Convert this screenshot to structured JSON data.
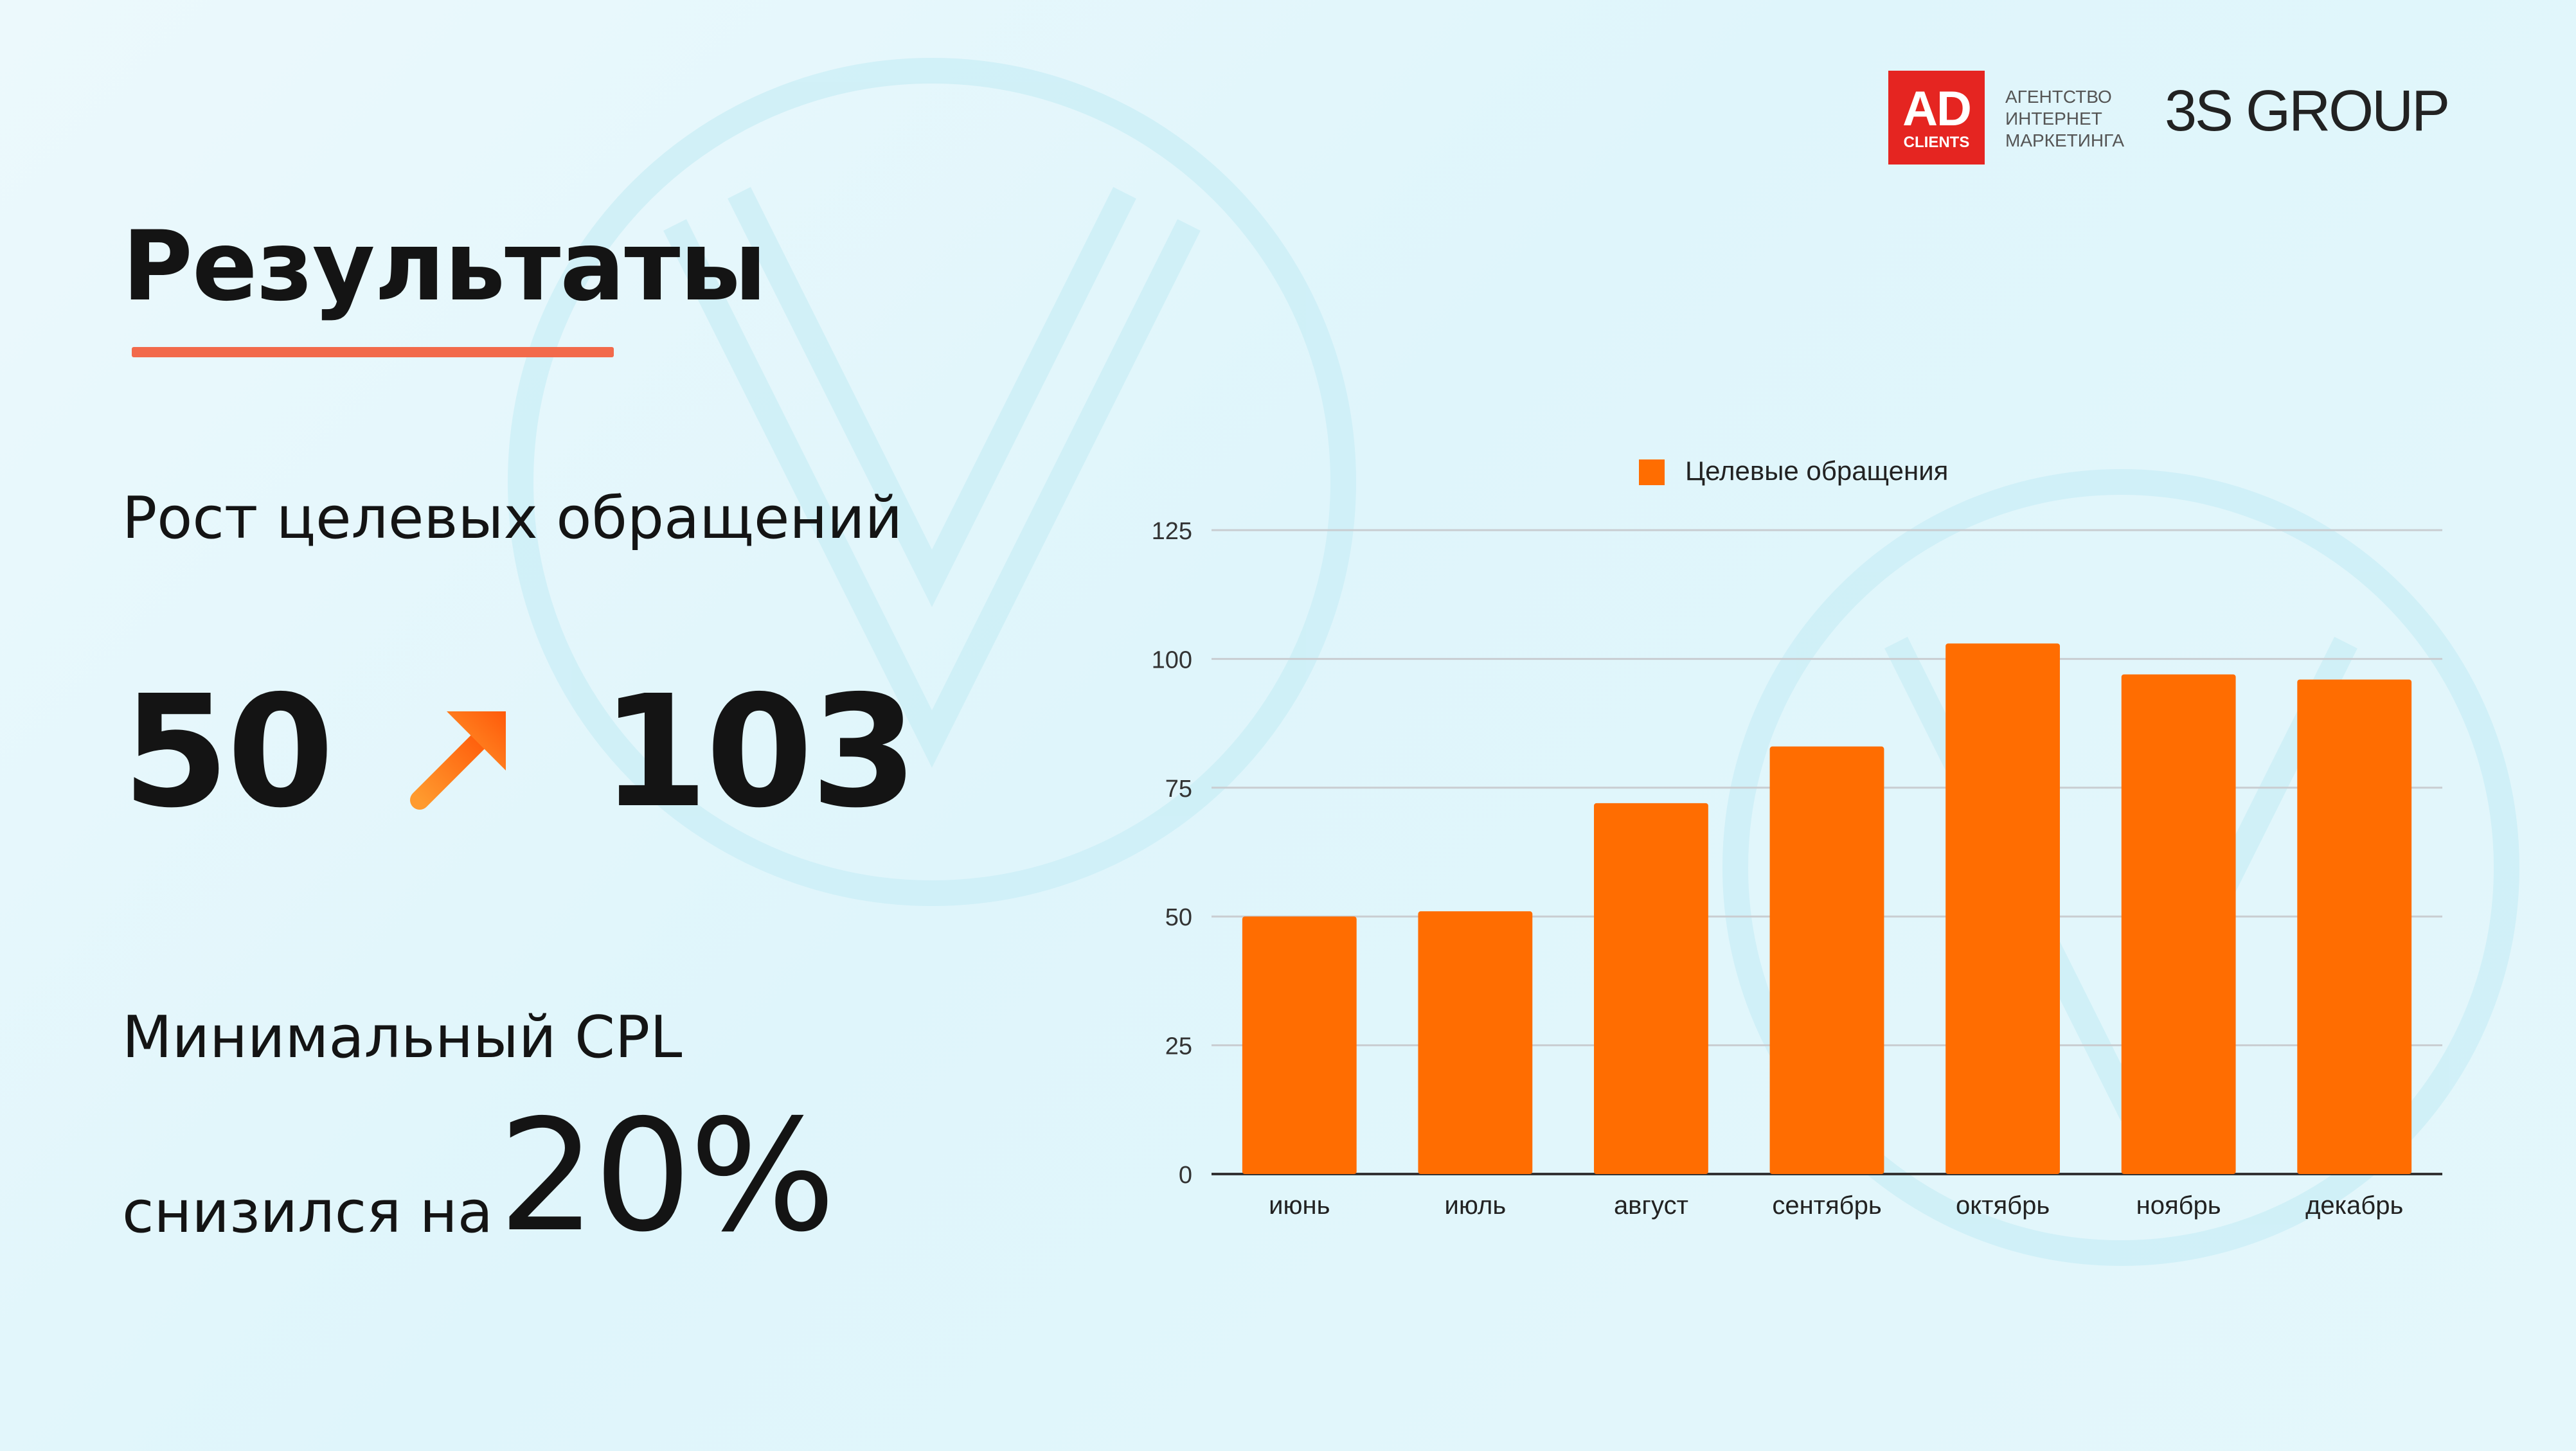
{
  "header": {
    "title": "Результаты",
    "brand": {
      "logo_main": "AD",
      "logo_sub": "CLIENTS",
      "agency_lines": [
        "АГЕНТСТВО",
        "ИНТЕРНЕТ",
        "МАРКЕТИНГА"
      ],
      "partner": "3S GROUP",
      "logo_color": "#e52521"
    }
  },
  "metrics": {
    "growth_label": "Рост целевых обращений",
    "from_value": "50",
    "to_value": "103",
    "arrow_icon": "arrow-up-right-icon",
    "cpl_label": "Минимальный CPL",
    "cpl_prefix": "снизился на",
    "cpl_value": "20%"
  },
  "colors": {
    "accent": "#f26a4b",
    "bar": "#ff6d01",
    "arrow": "#ff7f1a"
  },
  "chart_data": {
    "type": "bar",
    "categories": [
      "июнь",
      "июль",
      "август",
      "сентябрь",
      "октябрь",
      "ноябрь",
      "декабрь"
    ],
    "series": [
      {
        "name": "Целевые обращения",
        "values": [
          50,
          51,
          72,
          83,
          103,
          97,
          96
        ]
      }
    ],
    "ylim": [
      0,
      125
    ],
    "yticks": [
      0,
      25,
      50,
      75,
      100,
      125
    ],
    "grid": true,
    "legend": "top"
  }
}
